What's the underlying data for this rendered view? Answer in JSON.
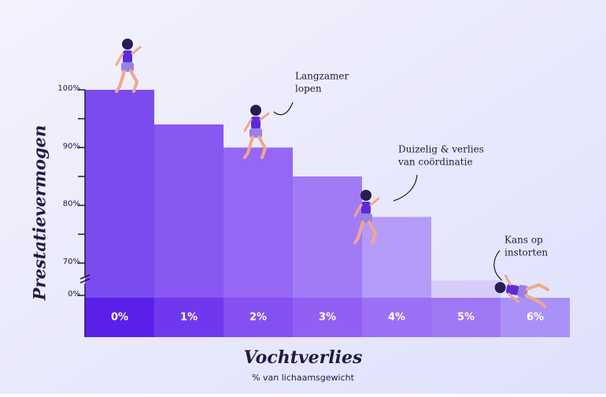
{
  "chart_data": {
    "type": "bar",
    "y_axis_title": "Prestatievermogen",
    "x_axis_title": "Vochtverlies",
    "x_axis_subtitle": "% van lichaamsgewicht",
    "categories": [
      "0%",
      "1%",
      "2%",
      "3%",
      "4%",
      "5%",
      "6%"
    ],
    "values": [
      100,
      94,
      90,
      85,
      78,
      67,
      0
    ],
    "colors": [
      "#7a4cf0",
      "#8758f2",
      "#9467f4",
      "#a17bf6",
      "#b59bf8",
      "#d6ccfa",
      "#e6e0fb"
    ],
    "band_colors": [
      "#5a20ea",
      "#7038ee",
      "#8450f1",
      "#9160f2",
      "#9b70f4",
      "#9f78f5",
      "#a991f7"
    ],
    "ylim": [
      65,
      100
    ],
    "yticks": [
      {
        "value": 0,
        "label": "0%"
      },
      {
        "value": 70,
        "label": "70%"
      },
      {
        "value": 80,
        "label": "80%"
      },
      {
        "value": 90,
        "label": "90%"
      },
      {
        "value": 100,
        "label": "100%"
      }
    ],
    "minor_yticks": [
      75,
      85,
      95
    ],
    "axis_break": true,
    "annotations": [
      {
        "lines": [
          "Langzamer",
          "lopen"
        ],
        "category": 2
      },
      {
        "lines": [
          "Duizelig & verlies",
          "van coördinatie"
        ],
        "category": 4
      },
      {
        "lines": [
          "Kans op",
          "instorten"
        ],
        "category": 6
      }
    ]
  }
}
